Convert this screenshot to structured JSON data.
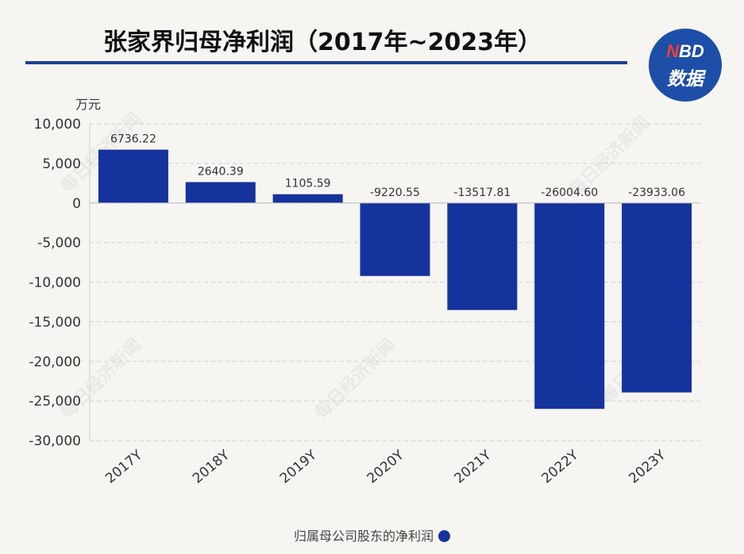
{
  "title": "张家界归母净利润（2017年~2023年）",
  "logo": {
    "top_letter": "N",
    "top_rest": "BD",
    "bottom": "数据"
  },
  "watermark": "每日经济新闻",
  "colors": {
    "bar": "#15339c",
    "rule": "#1d3f93",
    "logo": "#1d4ea8",
    "background": "#f7f5f2"
  },
  "chart_data": {
    "type": "bar",
    "categories": [
      "2017Y",
      "2018Y",
      "2019Y",
      "2020Y",
      "2021Y",
      "2022Y",
      "2023Y"
    ],
    "series": [
      {
        "name": "归属母公司股东的净利润",
        "values": [
          6736.22,
          2640.39,
          1105.59,
          -9220.55,
          -13517.81,
          -26004.6,
          -23933.06
        ],
        "labels": [
          "6736.22",
          "2640.39",
          "1105.59",
          "-9220.55",
          "-13517.81",
          "-26004.60",
          "-23933.06"
        ]
      }
    ],
    "ylabel": "万元",
    "ylim": [
      -30000,
      10000
    ],
    "yticks": [
      10000,
      5000,
      0,
      -5000,
      -10000,
      -15000,
      -20000,
      -25000,
      -30000
    ],
    "ytick_labels": [
      "10,000",
      "5,000",
      "0",
      "-5,000",
      "-10,000",
      "-15,000",
      "-20,000",
      "-25,000",
      "-30,000"
    ],
    "grid": true,
    "legend_position": "bottom"
  }
}
